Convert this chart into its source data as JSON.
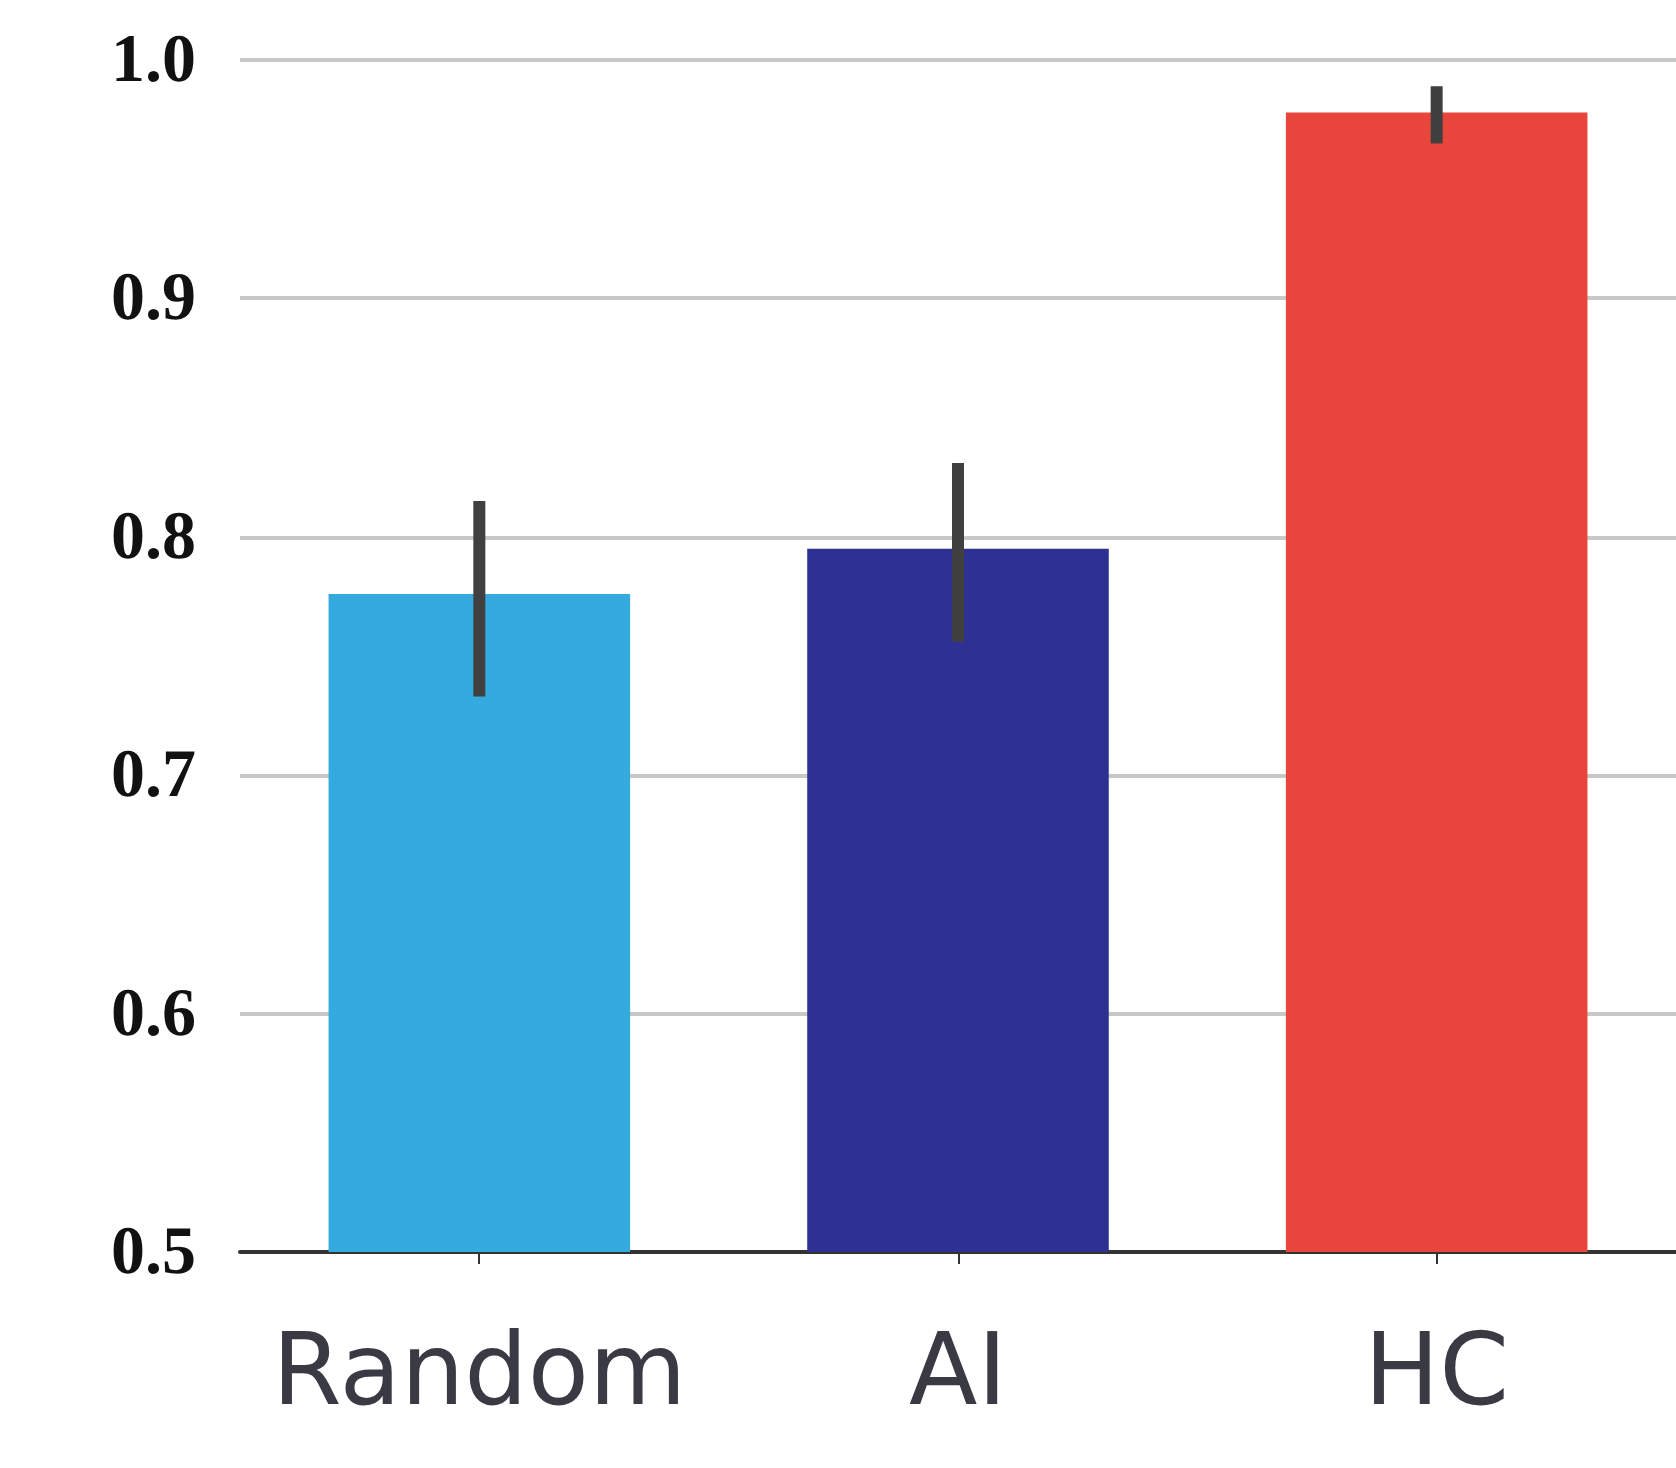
{
  "chart_data": {
    "type": "bar",
    "categories": [
      "Random",
      "AI",
      "HC"
    ],
    "values": [
      0.776,
      0.795,
      0.978
    ],
    "colors": [
      "#35aadf",
      "#2e3192",
      "#e8453c"
    ],
    "errors": [
      [
        0.733,
        0.815
      ],
      [
        0.756,
        0.831
      ],
      [
        0.965,
        0.989
      ]
    ],
    "ylim": [
      0.5,
      1.0
    ],
    "yticks": [
      0.5,
      0.6,
      0.7,
      0.8,
      0.9,
      {
        "value": 1.0,
        "label": "1.0"
      }
    ],
    "grid": "y"
  }
}
